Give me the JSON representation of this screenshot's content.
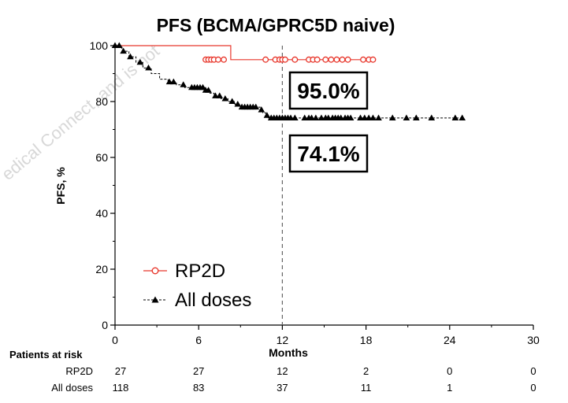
{
  "chart_data": {
    "type": "line",
    "title": "PFS (BCMA/GPRC5D naive)",
    "xlabel": "Months",
    "ylabel": "PFS, %",
    "xlim": [
      0,
      30
    ],
    "ylim": [
      0,
      100
    ],
    "x_ticks": [
      0,
      6,
      12,
      18,
      24,
      30
    ],
    "y_ticks": [
      0,
      20,
      40,
      60,
      80,
      100
    ],
    "reference_line_x": 12,
    "legend_placement": "lower-left",
    "series": [
      {
        "name": "RP2D",
        "color": "#e8372c",
        "marker": "open-circle",
        "step": [
          [
            0,
            100
          ],
          [
            8.3,
            100
          ],
          [
            8.3,
            95
          ],
          [
            18.6,
            95
          ]
        ],
        "censored_x": [
          6.5,
          6.7,
          6.9,
          7.1,
          7.4,
          7.8,
          10.8,
          11.5,
          11.8,
          12.0,
          12.2,
          12.9,
          13.9,
          14.2,
          14.5,
          15.1,
          15.5,
          15.9,
          16.3,
          16.7,
          17.8,
          18.2,
          18.5
        ],
        "censored_y": 95,
        "annotation": "95.0%"
      },
      {
        "name": "All doses",
        "color": "#000000",
        "marker": "filled-triangle",
        "step": [
          [
            0,
            100
          ],
          [
            0.5,
            98
          ],
          [
            1.0,
            96
          ],
          [
            1.5,
            94
          ],
          [
            2.0,
            92
          ],
          [
            2.6,
            90
          ],
          [
            3.2,
            88
          ],
          [
            3.8,
            87
          ],
          [
            4.4,
            86
          ],
          [
            5.0,
            85
          ],
          [
            6.3,
            85
          ],
          [
            6.5,
            84
          ],
          [
            6.8,
            83
          ],
          [
            7.1,
            82
          ],
          [
            7.6,
            81
          ],
          [
            8.1,
            80
          ],
          [
            8.6,
            79
          ],
          [
            9.0,
            78
          ],
          [
            10.2,
            78
          ],
          [
            10.4,
            77
          ],
          [
            10.6,
            76
          ],
          [
            10.8,
            75
          ],
          [
            11.0,
            74.1
          ],
          [
            24.9,
            74.1
          ]
        ],
        "censored_x": [
          0.3,
          0.6,
          1.1,
          1.8,
          2.4,
          3.9,
          4.2,
          4.9,
          5.5,
          5.7,
          5.9,
          6.1,
          6.3,
          6.5,
          6.7,
          7.2,
          7.5,
          7.9,
          8.4,
          8.8,
          9.1,
          9.3,
          9.5,
          9.7,
          9.9,
          10.1,
          10.5,
          10.9,
          11.2,
          11.4,
          11.6,
          11.8,
          12.0,
          12.2,
          12.4,
          12.6,
          12.9,
          13.6,
          13.9,
          14.1,
          14.4,
          14.8,
          15.1,
          15.3,
          15.6,
          15.8,
          16.0,
          16.2,
          16.5,
          16.7,
          16.9,
          17.6,
          17.9,
          18.2,
          18.5,
          18.9,
          19.9,
          20.9,
          21.6,
          22.7,
          24.4,
          24.9
        ],
        "annotation": "74.1%"
      }
    ],
    "risk_table": {
      "title": "Patients at risk",
      "times": [
        0,
        6,
        12,
        18,
        24,
        30
      ],
      "rows": [
        {
          "label": "RP2D",
          "values": [
            "27",
            "27",
            "12",
            "2",
            "0",
            "0"
          ]
        },
        {
          "label": "All doses",
          "values": [
            "118",
            "83",
            "37",
            "11",
            "1",
            "0"
          ]
        }
      ]
    },
    "watermark": "edical Connect, and is not"
  }
}
